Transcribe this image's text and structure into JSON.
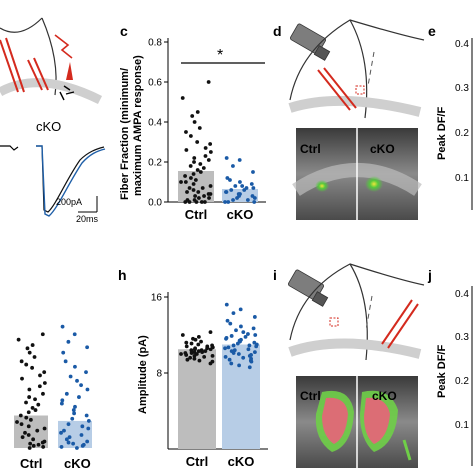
{
  "panel_letters": {
    "c": "c",
    "d": "d",
    "e": "e",
    "h": "h",
    "i": "i",
    "j": "j"
  },
  "panel_a": {
    "trace_label": "cKO",
    "scale_bar_y": "200pA",
    "scale_bar_x": "20ms",
    "colors": {
      "trace_ctrl": "#000000",
      "trace_cko": "#1f5fa8",
      "electrode": "#d42a1e"
    }
  },
  "panel_c": {
    "significance": "*",
    "ylabel_line1": "Fiber Fraction (minimum/",
    "ylabel_line2": "maximum AMPA response)"
  },
  "panel_d": {
    "label_ctrl": "Ctrl",
    "label_cko": "cKO"
  },
  "panel_e": {
    "ylabel": "Peak DF/F",
    "tick_0_4": "0.4",
    "tick_0_3": "0.3",
    "tick_0_2": "0.2",
    "tick_0_1": "0.1"
  },
  "panel_g": {
    "xlabel_ctrl": "Ctrl",
    "xlabel_cko": "cKO"
  },
  "panel_h": {
    "ylabel": "Amplitude (pA)"
  },
  "panel_i": {
    "label_ctrl": "Ctrl",
    "label_cko": "cKO"
  },
  "panel_j": {
    "ylabel": "Peak DF/F",
    "tick_0_4": "0.4",
    "tick_0_3": "0.3",
    "tick_0_2": "0.2",
    "tick_0_1": "0.1"
  },
  "colors": {
    "ctrl_bar": "#bdbdbd",
    "cko_bar": "#b7cde6",
    "ctrl_dot": "#111111",
    "cko_dot": "#1a5aa6"
  },
  "chart_data": [
    {
      "id": "c",
      "type": "bar",
      "categories": [
        "Ctrl",
        "cKO"
      ],
      "values": [
        0.155,
        0.065
      ],
      "ylabel": "Fiber Fraction (minimum/ maximum AMPA response)",
      "ylim": [
        0,
        0.8
      ],
      "yticks": [
        "0.0",
        "0.2",
        "0.4",
        "0.6",
        "0.8"
      ],
      "points": {
        "Ctrl": [
          0.6,
          0.52,
          0.45,
          0.43,
          0.4,
          0.37,
          0.35,
          0.33,
          0.3,
          0.29,
          0.27,
          0.26,
          0.25,
          0.23,
          0.22,
          0.21,
          0.2,
          0.19,
          0.18,
          0.17,
          0.16,
          0.15,
          0.14,
          0.13,
          0.12,
          0.11,
          0.1,
          0.1,
          0.09,
          0.08,
          0.07,
          0.07,
          0.06,
          0.05,
          0.05,
          0.04,
          0.04,
          0.03,
          0.03,
          0.02,
          0.02,
          0.01,
          0.01,
          0.0,
          0.0,
          0.0,
          0.0,
          0.0
        ],
        "cKO": [
          0.22,
          0.21,
          0.18,
          0.15,
          0.12,
          0.11,
          0.1,
          0.09,
          0.08,
          0.08,
          0.07,
          0.07,
          0.06,
          0.06,
          0.05,
          0.05,
          0.04,
          0.04,
          0.03,
          0.03,
          0.02,
          0.02,
          0.01,
          0.01,
          0.0,
          0.0,
          0.0
        ]
      }
    },
    {
      "id": "g",
      "type": "bar",
      "categories": [
        "Ctrl",
        "cKO"
      ],
      "values": [
        0.3,
        0.25
      ],
      "points": {
        "Ctrl": [
          1.05,
          1.0,
          0.95,
          0.92,
          0.88,
          0.84,
          0.8,
          0.77,
          0.74,
          0.7,
          0.67,
          0.64,
          0.6,
          0.57,
          0.54,
          0.5,
          0.47,
          0.45,
          0.42,
          0.4,
          0.37,
          0.35,
          0.33,
          0.3,
          0.28,
          0.26,
          0.24,
          0.22,
          0.2,
          0.18,
          0.16,
          0.14,
          0.12,
          0.1,
          0.08,
          0.06,
          0.05,
          0.04,
          0.03,
          0.02,
          0.01,
          0.0
        ],
        "cKO": [
          1.12,
          1.05,
          0.98,
          0.93,
          0.88,
          0.8,
          0.75,
          0.7,
          0.66,
          0.62,
          0.58,
          0.54,
          0.5,
          0.47,
          0.44,
          0.41,
          0.38,
          0.35,
          0.32,
          0.3,
          0.27,
          0.25,
          0.22,
          0.2,
          0.18,
          0.16,
          0.14,
          0.12,
          0.1,
          0.08,
          0.06,
          0.05,
          0.04,
          0.03,
          0.02,
          0.01,
          0.0
        ]
      }
    },
    {
      "id": "h",
      "type": "bar",
      "categories": [
        "Ctrl",
        "cKO"
      ],
      "values": [
        10.5,
        11.0
      ],
      "ylabel": "Amplitude (pA)",
      "ylim": [
        0,
        16
      ],
      "yticks": [
        "8",
        "16"
      ],
      "points": {
        "Ctrl": [
          12.3,
          12.0,
          11.8,
          11.6,
          11.5,
          11.3,
          11.2,
          11.1,
          11.0,
          10.9,
          10.8,
          10.8,
          10.7,
          10.6,
          10.6,
          10.5,
          10.5,
          10.4,
          10.4,
          10.3,
          10.3,
          10.2,
          10.2,
          10.1,
          10.1,
          10.0,
          10.0,
          9.9,
          9.8,
          9.8,
          9.7,
          9.6,
          9.5,
          9.4,
          9.3,
          9.2,
          9.0
        ],
        "cKO": [
          15.2,
          14.7,
          14.3,
          13.9,
          13.5,
          13.2,
          12.9,
          12.7,
          12.5,
          12.3,
          12.1,
          12.0,
          11.9,
          11.8,
          11.7,
          11.6,
          11.5,
          11.4,
          11.3,
          11.2,
          11.1,
          11.0,
          10.9,
          10.9,
          10.8,
          10.7,
          10.6,
          10.5,
          10.4,
          10.3,
          10.2,
          10.1,
          10.0,
          9.9,
          9.8,
          9.7,
          9.6,
          9.5,
          9.4,
          9.3,
          9.2,
          9.0,
          8.8,
          8.6
        ]
      }
    }
  ]
}
